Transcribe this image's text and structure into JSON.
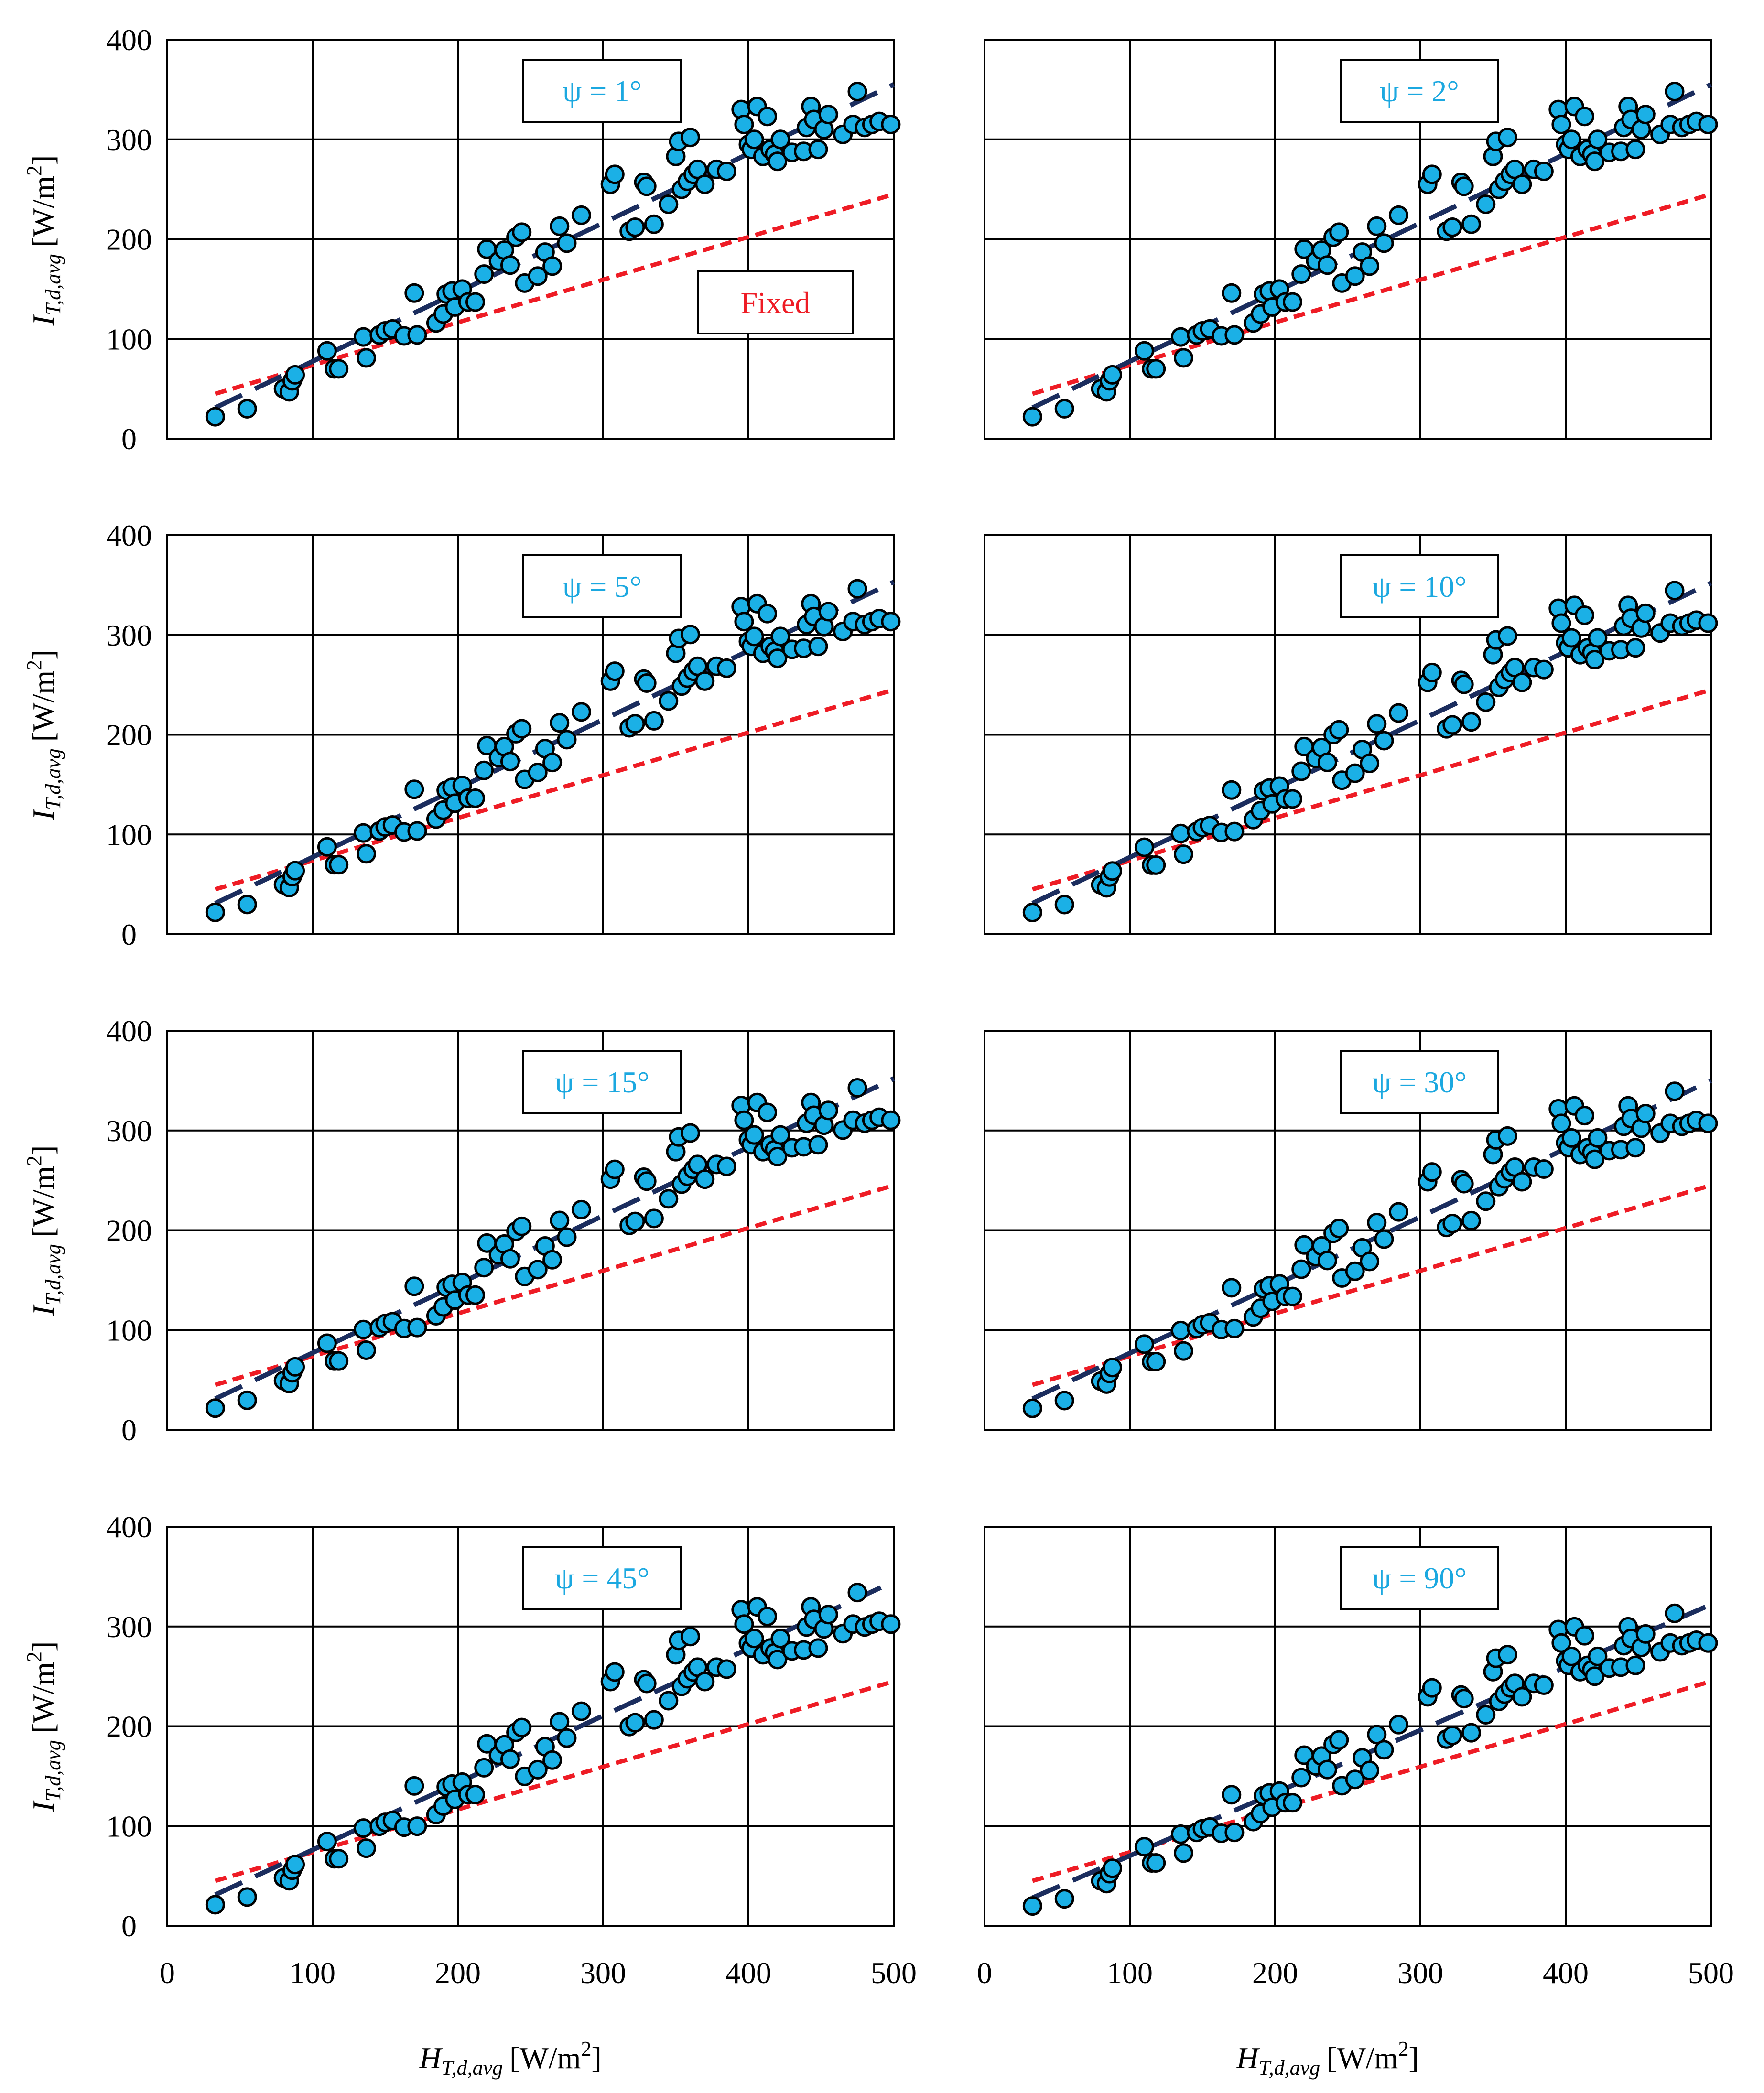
{
  "figure": {
    "xlabel_var": "H",
    "xlabel_sub": "T,d,avg",
    "xlabel_unit": "[W/m2]",
    "ylabel_var": "I",
    "ylabel_sub": "T,d,avg",
    "ylabel_unit": "[W/m2]"
  },
  "colors": {
    "marker": "#1BB0E6",
    "tracking_line": "#1B2D5E",
    "fixed_line": "#EE1C25",
    "label_text": "#1BA8E0",
    "fixed_text": "#EE1C25"
  },
  "chart_data": [
    {
      "type": "scatter",
      "label": "ψ = 1°",
      "scale": 1.0,
      "xlim": [
        0,
        500
      ],
      "ylim": [
        0,
        400
      ],
      "xticks": [
        "0",
        "100",
        "200",
        "300",
        "400",
        "500"
      ],
      "yticks": [
        "0",
        "100",
        "200",
        "300",
        "400"
      ],
      "fit": [
        [
          33,
          31
        ],
        [
          500,
          355
        ]
      ],
      "fixed_fit": [
        [
          33,
          45
        ],
        [
          500,
          245
        ]
      ],
      "extra_label": "Fixed"
    },
    {
      "type": "scatter",
      "label": "ψ = 2°",
      "scale": 1.0,
      "xlim": [
        0,
        500
      ],
      "ylim": [
        0,
        400
      ],
      "xticks": [
        "0",
        "100",
        "200",
        "300",
        "400",
        "500"
      ],
      "yticks": [
        "0",
        "100",
        "200",
        "300",
        "400"
      ],
      "fit": [
        [
          33,
          31
        ],
        [
          500,
          355
        ]
      ],
      "fixed_fit": [
        [
          33,
          45
        ],
        [
          500,
          245
        ]
      ]
    },
    {
      "type": "scatter",
      "label": "ψ = 5°",
      "scale": 0.995,
      "xlim": [
        0,
        500
      ],
      "ylim": [
        0,
        400
      ],
      "xticks": [
        "0",
        "100",
        "200",
        "300",
        "400",
        "500"
      ],
      "yticks": [
        "0",
        "100",
        "200",
        "300",
        "400"
      ],
      "fit": [
        [
          33,
          31
        ],
        [
          500,
          353
        ]
      ],
      "fixed_fit": [
        [
          33,
          45
        ],
        [
          500,
          245
        ]
      ]
    },
    {
      "type": "scatter",
      "label": "ψ = 10°",
      "scale": 0.99,
      "xlim": [
        0,
        500
      ],
      "ylim": [
        0,
        400
      ],
      "xticks": [
        "0",
        "100",
        "200",
        "300",
        "400",
        "500"
      ],
      "yticks": [
        "0",
        "100",
        "200",
        "300",
        "400"
      ],
      "fit": [
        [
          33,
          31
        ],
        [
          500,
          352
        ]
      ],
      "fixed_fit": [
        [
          33,
          45
        ],
        [
          500,
          245
        ]
      ]
    },
    {
      "type": "scatter",
      "label": "ψ = 15°",
      "scale": 0.985,
      "xlim": [
        0,
        500
      ],
      "ylim": [
        0,
        400
      ],
      "xticks": [
        "0",
        "100",
        "200",
        "300",
        "400",
        "500"
      ],
      "yticks": [
        "0",
        "100",
        "200",
        "300",
        "400"
      ],
      "fit": [
        [
          33,
          31
        ],
        [
          500,
          352
        ]
      ],
      "fixed_fit": [
        [
          33,
          45
        ],
        [
          500,
          245
        ]
      ]
    },
    {
      "type": "scatter",
      "label": "ψ = 30°",
      "scale": 0.975,
      "xlim": [
        0,
        500
      ],
      "ylim": [
        0,
        400
      ],
      "xticks": [
        "0",
        "100",
        "200",
        "300",
        "400",
        "500"
      ],
      "yticks": [
        "0",
        "100",
        "200",
        "300",
        "400"
      ],
      "fit": [
        [
          33,
          31
        ],
        [
          500,
          350
        ]
      ],
      "fixed_fit": [
        [
          33,
          45
        ],
        [
          500,
          245
        ]
      ]
    },
    {
      "type": "scatter",
      "label": "ψ = 45°",
      "scale": 0.96,
      "xlim": [
        0,
        500
      ],
      "ylim": [
        0,
        400
      ],
      "xticks": [
        "0",
        "100",
        "200",
        "300",
        "400",
        "500"
      ],
      "yticks": [
        "0",
        "100",
        "200",
        "300",
        "400"
      ],
      "fit": [
        [
          33,
          31
        ],
        [
          500,
          345
        ]
      ],
      "fixed_fit": [
        [
          33,
          45
        ],
        [
          500,
          245
        ]
      ]
    },
    {
      "type": "scatter",
      "label": "ψ = 90°",
      "scale": 0.9,
      "xlim": [
        0,
        500
      ],
      "ylim": [
        0,
        400
      ],
      "xticks": [
        "0",
        "100",
        "200",
        "300",
        "400",
        "500"
      ],
      "yticks": [
        "0",
        "100",
        "200",
        "300",
        "400"
      ],
      "fit": [
        [
          33,
          28
        ],
        [
          500,
          322
        ]
      ],
      "fixed_fit": [
        [
          33,
          45
        ],
        [
          500,
          245
        ]
      ]
    }
  ],
  "base_points": [
    [
      33,
      22
    ],
    [
      55,
      30
    ],
    [
      80,
      50
    ],
    [
      84,
      47
    ],
    [
      86,
      58
    ],
    [
      88,
      64
    ],
    [
      110,
      88
    ],
    [
      115,
      70
    ],
    [
      118,
      70
    ],
    [
      135,
      102
    ],
    [
      137,
      81
    ],
    [
      146,
      104
    ],
    [
      150,
      108
    ],
    [
      155,
      110
    ],
    [
      163,
      103
    ],
    [
      170,
      146
    ],
    [
      172,
      104
    ],
    [
      185,
      116
    ],
    [
      190,
      125
    ],
    [
      192,
      145
    ],
    [
      196,
      148
    ],
    [
      198,
      132
    ],
    [
      203,
      150
    ],
    [
      207,
      137
    ],
    [
      212,
      137
    ],
    [
      218,
      165
    ],
    [
      220,
      190
    ],
    [
      228,
      178
    ],
    [
      232,
      189
    ],
    [
      236,
      174
    ],
    [
      240,
      202
    ],
    [
      244,
      207
    ],
    [
      246,
      156
    ],
    [
      255,
      163
    ],
    [
      260,
      187
    ],
    [
      265,
      173
    ],
    [
      270,
      213
    ],
    [
      275,
      196
    ],
    [
      285,
      224
    ],
    [
      305,
      255
    ],
    [
      308,
      265
    ],
    [
      318,
      208
    ],
    [
      322,
      212
    ],
    [
      328,
      257
    ],
    [
      330,
      253
    ],
    [
      335,
      215
    ],
    [
      345,
      235
    ],
    [
      350,
      283
    ],
    [
      352,
      298
    ],
    [
      354,
      250
    ],
    [
      358,
      258
    ],
    [
      360,
      302
    ],
    [
      362,
      265
    ],
    [
      365,
      270
    ],
    [
      370,
      255
    ],
    [
      378,
      270
    ],
    [
      385,
      268
    ],
    [
      395,
      330
    ],
    [
      397,
      315
    ],
    [
      400,
      295
    ],
    [
      402,
      290
    ],
    [
      404,
      300
    ],
    [
      406,
      333
    ],
    [
      410,
      283
    ],
    [
      413,
      323
    ],
    [
      415,
      290
    ],
    [
      418,
      285
    ],
    [
      420,
      278
    ],
    [
      422,
      300
    ],
    [
      430,
      287
    ],
    [
      438,
      288
    ],
    [
      440,
      312
    ],
    [
      443,
      333
    ],
    [
      445,
      320
    ],
    [
      448,
      290
    ],
    [
      452,
      310
    ],
    [
      455,
      325
    ],
    [
      465,
      305
    ],
    [
      472,
      315
    ],
    [
      475,
      348
    ],
    [
      480,
      312
    ],
    [
      485,
      315
    ],
    [
      490,
      318
    ],
    [
      498,
      315
    ]
  ]
}
